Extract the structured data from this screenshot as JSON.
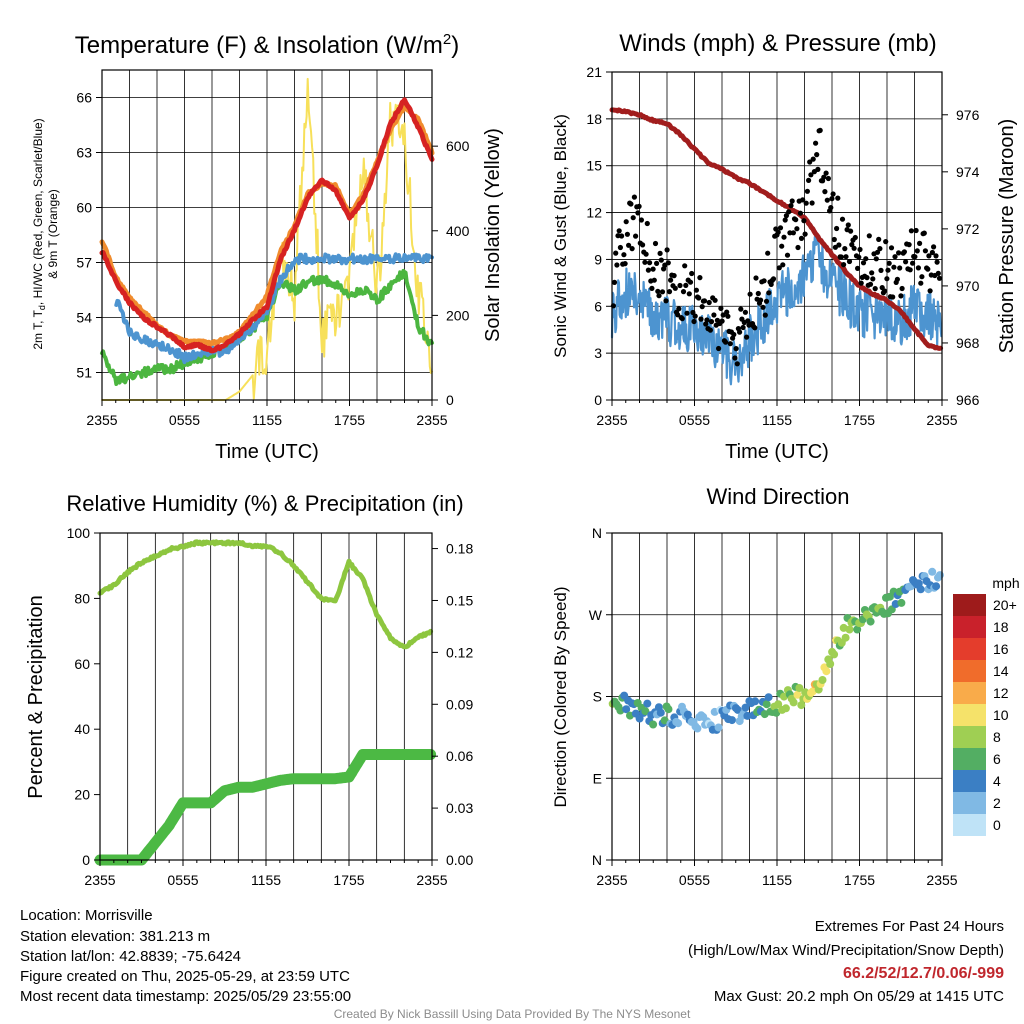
{
  "x_tick_labels": [
    "2355",
    "0555",
    "1155",
    "1755",
    "2355"
  ],
  "colors": {
    "red": "#d62222",
    "orange": "#f08c2e",
    "blue": "#4d94d0",
    "green": "#4cb640",
    "yellow": "#f7e05a",
    "maroon": "#a11d1d",
    "black": "#000000",
    "rh_green": "#8dc63f",
    "precip_green": "#4cb944",
    "extremes": "#c0272d"
  },
  "footer": {
    "location": "Location: Morrisville",
    "elevation": "Station elevation: 381.213 m",
    "latlon": "Station lat/lon: 42.8839; -75.6424",
    "created": "Figure created on Thu, 2025-05-29, at 23:59 UTC",
    "recent": "Most recent data timestamp: 2025/05/29 23:55:00",
    "extremes_title": "Extremes For Past 24 Hours",
    "extremes_desc": "(High/Low/Max Wind/Precipitation/Snow Depth)",
    "extremes_values": "66.2/52/12.7/0.06/-999",
    "max_gust": "Max Gust: 20.2 mph On 05/29 at 1415 UTC",
    "credit": "Created By Nick Bassill Using Data Provided By The NYS Mesonet"
  },
  "chart_data": [
    {
      "type": "line",
      "title": "Temperature (F) & Insolation (W/m²)",
      "xlabel": "Time (UTC)",
      "ylabel_left": "2m T, Td, HI/WC (Red, Green, Scarlet/Blue) & 9m T (Orange)",
      "ylabel_right": "Solar Insolation (Yellow)",
      "y_left_range": [
        49.5,
        67.5
      ],
      "y_left_ticks": [
        "51",
        "54",
        "57",
        "60",
        "63",
        "66"
      ],
      "y_right_range": [
        0,
        780
      ],
      "y_right_ticks": [
        "0",
        "200",
        "400",
        "600"
      ],
      "x_hours": [
        0,
        1,
        2,
        3,
        4,
        5,
        6,
        7,
        8,
        9,
        10,
        11,
        12,
        13,
        14,
        15,
        16,
        17,
        18,
        19,
        20,
        21,
        22,
        23,
        24
      ],
      "series": [
        {
          "color_key": "orange",
          "axis": "left",
          "values": [
            58.2,
            56.2,
            55.1,
            54.3,
            53.6,
            53.0,
            52.7,
            52.7,
            52.6,
            52.8,
            53.2,
            54.2,
            55.2,
            57.6,
            59.0,
            60.8,
            61.3,
            61.2,
            59.6,
            60.7,
            62.5,
            64.3,
            65.5,
            64.8,
            63.0
          ]
        },
        {
          "color_key": "red",
          "axis": "left",
          "values": [
            57.6,
            56.0,
            54.8,
            54.0,
            53.5,
            53.0,
            52.4,
            52.5,
            52.2,
            52.5,
            53.1,
            53.9,
            54.6,
            57.2,
            58.8,
            60.6,
            61.5,
            60.9,
            59.4,
            60.4,
            62.3,
            64.6,
            65.9,
            64.4,
            62.6
          ]
        },
        {
          "color_key": "blue",
          "axis": "left",
          "values": [
            null,
            55.0,
            53.2,
            52.8,
            52.6,
            52.3,
            51.8,
            52.1,
            52.2,
            52.1,
            52.9,
            53.5,
            54.4,
            56.1,
            57.2
          ]
        },
        {
          "color_key": "green",
          "axis": "left",
          "values": [
            52.3,
            50.5,
            50.8,
            51.0,
            51.2,
            51.2,
            51.5,
            51.7,
            52.1,
            52.4,
            52.9,
            53.4,
            54.1,
            56.0,
            55.5,
            55.9,
            56.1,
            55.8,
            55.2,
            55.5,
            54.9,
            55.8,
            56.5,
            53.5,
            52.5
          ]
        },
        {
          "color_key": "yellow",
          "axis": "right",
          "values": [
            0,
            0,
            0,
            0,
            0,
            0,
            0,
            0,
            0,
            0,
            20,
            60,
            120,
            360,
            240,
            760,
            150,
            190,
            300,
            560,
            240,
            660,
            620,
            260,
            50
          ]
        }
      ]
    },
    {
      "type": "line",
      "title": "Winds (mph) & Pressure (mb)",
      "xlabel": "Time (UTC)",
      "ylabel_left": "Sonic Wind & Gust (Blue, Black)",
      "ylabel_right": "Station Pressure (Maroon)",
      "y_left_range": [
        0,
        21
      ],
      "y_left_ticks": [
        "0",
        "3",
        "6",
        "9",
        "12",
        "15",
        "18",
        "21"
      ],
      "y_right_range": [
        966,
        977.5
      ],
      "y_right_ticks": [
        "966",
        "968",
        "970",
        "972",
        "974",
        "976"
      ],
      "x_hours": [
        0,
        1,
        2,
        3,
        4,
        5,
        6,
        7,
        8,
        9,
        10,
        11,
        12,
        13,
        14,
        15,
        16,
        17,
        18,
        19,
        20,
        21,
        22,
        23,
        24
      ],
      "series": [
        {
          "color_key": "blue",
          "axis": "left",
          "name": "Sonic Wind",
          "values": [
            5.5,
            6.8,
            7.0,
            5.5,
            5.2,
            4.5,
            4.8,
            4.0,
            3.2,
            2.2,
            3.8,
            5.0,
            6.5,
            7.0,
            7.8,
            9.2,
            7.5,
            6.5,
            5.5,
            5.5,
            5.2,
            5.0,
            6.0,
            5.5,
            4.8
          ]
        },
        {
          "color_key": "black",
          "axis": "left",
          "name": "Gust",
          "values": [
            7.5,
            10.5,
            11.8,
            8.5,
            8.0,
            7.0,
            6.5,
            5.5,
            4.5,
            3.2,
            5.5,
            6.8,
            9.5,
            11.0,
            11.8,
            16.5,
            12.0,
            10.0,
            9.0,
            9.0,
            8.5,
            8.0,
            9.5,
            9.0,
            7.0
          ]
        },
        {
          "color_key": "maroon",
          "axis": "right",
          "name": "Station Pressure",
          "values": [
            976.2,
            976.1,
            976.0,
            975.8,
            975.7,
            975.3,
            974.8,
            974.3,
            974.1,
            973.8,
            973.6,
            973.3,
            973.0,
            972.7,
            972.4,
            971.7,
            971.1,
            970.5,
            970.0,
            969.7,
            969.5,
            969.1,
            968.5,
            967.9,
            967.8
          ]
        }
      ]
    },
    {
      "type": "line",
      "title": "Relative Humidity (%) & Precipitation (in)",
      "xlabel": "",
      "ylabel_left": "Percent & Precipitation",
      "y_left_range": [
        0,
        100
      ],
      "y_left_ticks": [
        "0",
        "20",
        "40",
        "60",
        "80",
        "100"
      ],
      "y_right_range": [
        0,
        0.189
      ],
      "y_right_ticks": [
        "0.00",
        "0.03",
        "0.06",
        "0.09",
        "0.12",
        "0.15",
        "0.18"
      ],
      "x_hours": [
        0,
        1,
        2,
        3,
        4,
        5,
        6,
        7,
        8,
        9,
        10,
        11,
        12,
        13,
        14,
        15,
        16,
        17,
        18,
        19,
        20,
        21,
        22,
        23,
        24
      ],
      "series": [
        {
          "color_key": "rh_green",
          "axis": "left",
          "name": "Relative Humidity",
          "values": [
            82,
            84,
            88,
            91,
            93,
            95,
            96,
            97,
            97,
            97,
            97,
            96,
            96,
            94,
            90,
            85,
            80,
            79,
            91,
            86,
            75,
            68,
            65,
            68,
            70
          ]
        },
        {
          "color_key": "precip_green",
          "axis": "right",
          "name": "Precipitation",
          "values": [
            0,
            0,
            0,
            0,
            0.01,
            0.02,
            0.033,
            0.033,
            0.033,
            0.04,
            0.042,
            0.042,
            0.044,
            0.046,
            0.047,
            0.047,
            0.047,
            0.047,
            0.048,
            0.061,
            0.061,
            0.061,
            0.061,
            0.061,
            0.061
          ]
        }
      ]
    },
    {
      "type": "scatter",
      "title": "Wind Direction",
      "ylabel_left": "Direction (Colored By Speed)",
      "y_ticks": [
        "N",
        "E",
        "S",
        "W",
        "N"
      ],
      "y_range": [
        0,
        360
      ],
      "x_hours": [
        0,
        1,
        2,
        3,
        4,
        5,
        6,
        7,
        8,
        9,
        10,
        11,
        12,
        13,
        14,
        15,
        16,
        17,
        18,
        19,
        20,
        21,
        22,
        23,
        24
      ],
      "direction_values": [
        178,
        170,
        163,
        160,
        158,
        160,
        157,
        150,
        155,
        162,
        165,
        168,
        172,
        180,
        182,
        195,
        230,
        255,
        265,
        270,
        280,
        290,
        300,
        305,
        310
      ],
      "speed_values": [
        6,
        5,
        4,
        4,
        4,
        3,
        3,
        2,
        2,
        3,
        4,
        5,
        6,
        7,
        9,
        10,
        8,
        7,
        7,
        6,
        6,
        5,
        3,
        3,
        3
      ],
      "legend_title": "mph",
      "legend_labels": [
        "20+",
        "18",
        "16",
        "14",
        "12",
        "10",
        "8",
        "6",
        "4",
        "2",
        "0"
      ],
      "legend_colors": [
        "#9e1b1b",
        "#c9212b",
        "#e43d2c",
        "#f06c2b",
        "#f9ab4a",
        "#f5e26a",
        "#9fcf53",
        "#53ae63",
        "#3b7fc4",
        "#80b9e4",
        "#bfe3f7"
      ]
    }
  ]
}
